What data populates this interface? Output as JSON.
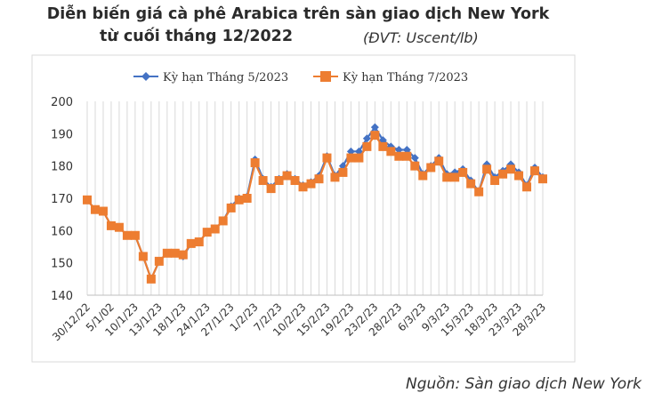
{
  "header": {
    "title_line1": "Diễn biến giá cà phê Arabica trên sàn giao dịch New York",
    "title_line2": "từ cuối tháng 12/2022",
    "unit": "(ĐVT: Uscent/lb)"
  },
  "source": "Nguồn: Sàn giao dịch New York",
  "colors": {
    "series_may": "#4472c4",
    "series_jul": "#ed7d31",
    "grid": "#d9d9d9",
    "frame": "#d9d9d9"
  },
  "chart_data": {
    "type": "line",
    "ylim": [
      140,
      200
    ],
    "yticks": [
      140,
      150,
      160,
      170,
      180,
      190,
      200
    ],
    "grid": "vertical",
    "legend_position": "top",
    "xtick_labels": [
      "30/12/22",
      "5/1/02",
      "10/1/23",
      "13/1/23",
      "18/1/23",
      "24/1/23",
      "27/1/23",
      "1/2/23",
      "7/2/23",
      "10/2/23",
      "15/2/23",
      "19/2/23",
      "23/2/23",
      "28/2/23",
      "6/3/23",
      "9/3/23",
      "15/3/23",
      "18/3/23",
      "23/3/23",
      "28/3/23"
    ],
    "series": [
      {
        "name": "Kỳ hạn Tháng 5/2023",
        "marker": "diamond",
        "values": [
          169.5,
          166.5,
          166,
          161.5,
          161,
          158.5,
          158.5,
          152,
          145,
          150.5,
          153,
          153,
          152,
          156,
          156.5,
          159.5,
          160.5,
          163,
          167.5,
          170,
          170.5,
          182,
          176,
          173.5,
          176,
          177.5,
          176,
          174,
          175,
          177,
          183,
          177,
          180,
          184.5,
          184.5,
          188.5,
          192,
          188,
          186,
          185,
          185,
          182.5,
          177.5,
          180,
          182.5,
          177.5,
          178,
          179,
          175.5,
          172,
          180.5,
          176.5,
          178.5,
          180.5,
          178,
          174,
          179.5,
          176.5
        ]
      },
      {
        "name": "Kỳ hạn Tháng 7/2023",
        "marker": "square",
        "values": [
          169.5,
          166.5,
          166,
          161.5,
          161,
          158.5,
          158.5,
          152,
          145,
          150.5,
          153,
          153,
          152.5,
          156,
          156.5,
          159.5,
          160.5,
          163,
          167,
          169.5,
          170,
          181,
          175.5,
          173,
          175.5,
          177,
          175.5,
          173.5,
          174.5,
          176,
          182.5,
          176.5,
          178,
          182.5,
          182.5,
          186,
          189.5,
          186,
          184.5,
          183,
          183,
          180,
          177,
          179.5,
          181.5,
          176.5,
          176.5,
          178,
          174.5,
          172,
          179,
          175.5,
          177.5,
          179,
          177,
          173.5,
          178.5,
          176
        ]
      }
    ]
  }
}
